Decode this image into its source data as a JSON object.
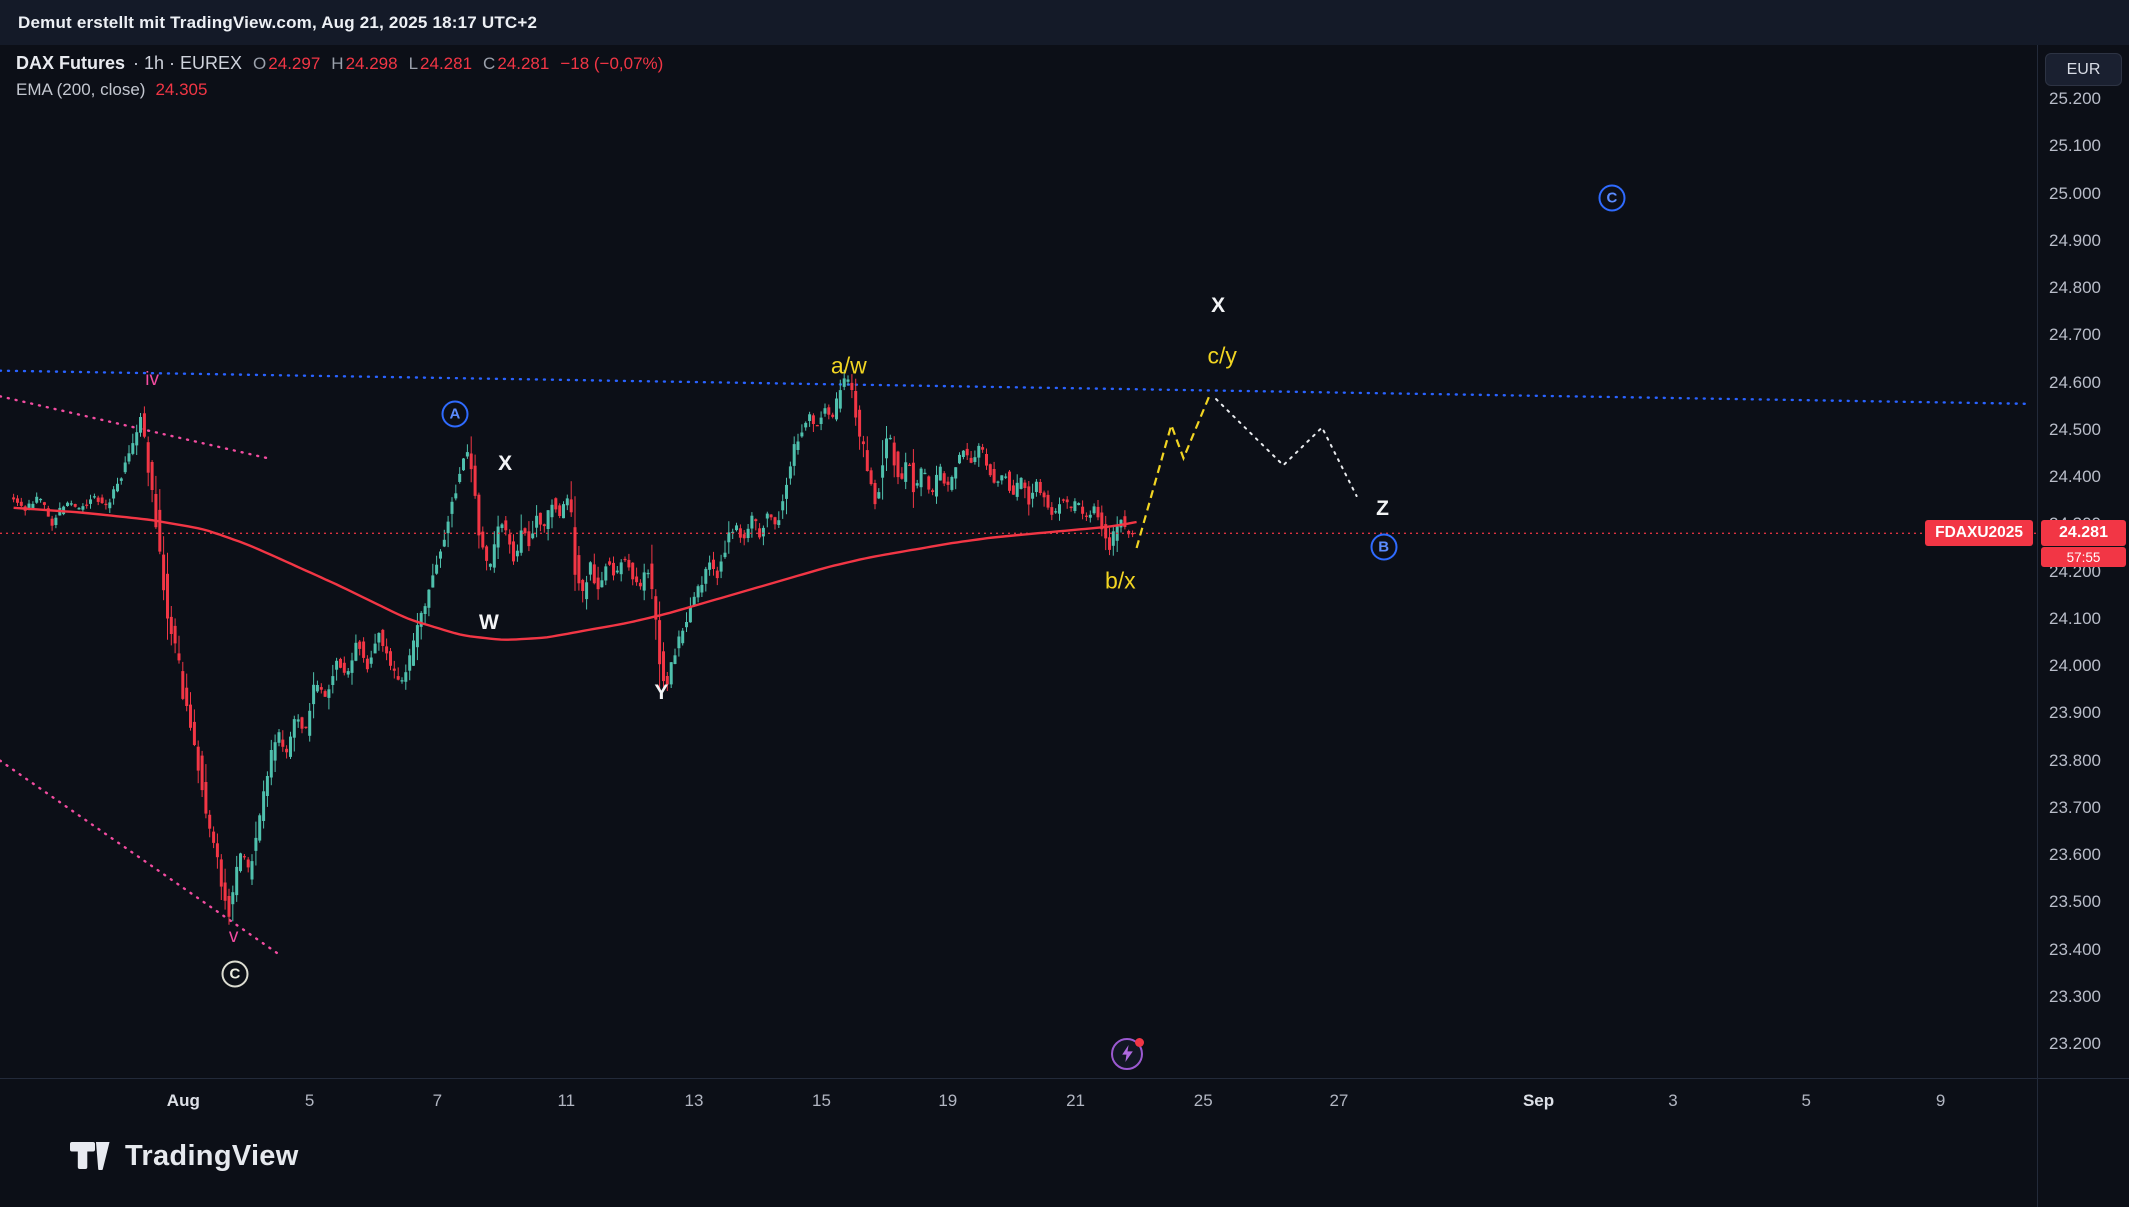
{
  "topbar": {
    "attribution": "Demut erstellt mit TradingView.com, Aug 21, 2025 18:17 UTC+2"
  },
  "legend": {
    "symbol": "DAX Futures",
    "meta": "· 1h · EUREX",
    "ohlc": [
      {
        "k": "O",
        "v": "24.297"
      },
      {
        "k": "H",
        "v": "24.298"
      },
      {
        "k": "L",
        "v": "24.281"
      },
      {
        "k": "C",
        "v": "24.281"
      }
    ],
    "change": "−18 (−0,07%)",
    "ema_label": "EMA (200, close)",
    "ema_value": "24.305"
  },
  "axis": {
    "currency": "EUR",
    "price_tag": {
      "ticker": "FDAXU2025",
      "price": "24.281",
      "countdown": "57:55"
    }
  },
  "logo": {
    "text": "TradingView"
  },
  "colors": {
    "bg": "#0c0f17",
    "candle_up": "#4fc0ad",
    "candle_down": "#f23645",
    "ema": "#f23645",
    "blue": "#2962ff",
    "pink": "#f24ca0",
    "yellow": "#f2d522",
    "white_proj": "#e9ebee",
    "tag_bg": "#f23645"
  },
  "chart_data": {
    "type": "candlestick",
    "symbol": "DAX Futures (FDAXU2025)",
    "interval": "1h",
    "exchange": "EUREX",
    "current_price": 24.281,
    "ema": {
      "period": 200,
      "source": "close",
      "value": 24.305
    },
    "ylim": [
      23.2,
      25.2
    ],
    "y_ticks": [
      {
        "label": "25.200",
        "value": 25.2
      },
      {
        "label": "25.100",
        "value": 25.1
      },
      {
        "label": "25.000",
        "value": 25.0
      },
      {
        "label": "24.900",
        "value": 24.9
      },
      {
        "label": "24.800",
        "value": 24.8
      },
      {
        "label": "24.700",
        "value": 24.7
      },
      {
        "label": "24.600",
        "value": 24.6
      },
      {
        "label": "24.500",
        "value": 24.5
      },
      {
        "label": "24.400",
        "value": 24.4
      },
      {
        "label": "24.300",
        "value": 24.3
      },
      {
        "label": "24.200",
        "value": 24.2
      },
      {
        "label": "24.100",
        "value": 24.1
      },
      {
        "label": "24.000",
        "value": 24.0
      },
      {
        "label": "23.900",
        "value": 23.9
      },
      {
        "label": "23.800",
        "value": 23.8
      },
      {
        "label": "23.700",
        "value": 23.7
      },
      {
        "label": "23.600",
        "value": 23.6
      },
      {
        "label": "23.500",
        "value": 23.5
      },
      {
        "label": "23.400",
        "value": 23.4
      },
      {
        "label": "23.300",
        "value": 23.3
      },
      {
        "label": "23.200",
        "value": 23.2
      }
    ],
    "x_ticks": [
      {
        "label": "Aug",
        "t": 0.09,
        "month": true
      },
      {
        "label": "5",
        "t": 0.152
      },
      {
        "label": "7",
        "t": 0.2147
      },
      {
        "label": "11",
        "t": 0.278
      },
      {
        "label": "13",
        "t": 0.3407
      },
      {
        "label": "15",
        "t": 0.4033
      },
      {
        "label": "19",
        "t": 0.4653
      },
      {
        "label": "21",
        "t": 0.528
      },
      {
        "label": "25",
        "t": 0.5907
      },
      {
        "label": "27",
        "t": 0.6573
      },
      {
        "label": "Sep",
        "t": 0.7553,
        "month": true
      },
      {
        "label": "3",
        "t": 0.8213
      },
      {
        "label": "5",
        "t": 0.8867
      },
      {
        "label": "9",
        "t": 0.9527
      }
    ],
    "candles": {
      "count": 292,
      "t_start": 0.0067,
      "t_end": 0.556
    },
    "price_path": [
      [
        0.0067,
        24.36
      ],
      [
        0.0133,
        24.33
      ],
      [
        0.02,
        24.36
      ],
      [
        0.0267,
        24.3
      ],
      [
        0.0333,
        24.35
      ],
      [
        0.04,
        24.33
      ],
      [
        0.0467,
        24.36
      ],
      [
        0.0533,
        24.34
      ],
      [
        0.06,
        24.4
      ],
      [
        0.0667,
        24.48
      ],
      [
        0.07,
        24.52
      ],
      [
        0.0747,
        24.4
      ],
      [
        0.0787,
        24.28
      ],
      [
        0.0827,
        24.12
      ],
      [
        0.0867,
        24.05
      ],
      [
        0.0907,
        23.95
      ],
      [
        0.0947,
        23.88
      ],
      [
        0.0987,
        23.78
      ],
      [
        0.1027,
        23.67
      ],
      [
        0.1067,
        23.6
      ],
      [
        0.1107,
        23.52
      ],
      [
        0.1133,
        23.48
      ],
      [
        0.1167,
        23.56
      ],
      [
        0.12,
        23.61
      ],
      [
        0.1233,
        23.55
      ],
      [
        0.128,
        23.68
      ],
      [
        0.1333,
        23.8
      ],
      [
        0.1373,
        23.86
      ],
      [
        0.1413,
        23.81
      ],
      [
        0.1467,
        23.9
      ],
      [
        0.1507,
        23.86
      ],
      [
        0.156,
        23.97
      ],
      [
        0.16,
        23.93
      ],
      [
        0.1667,
        24.02
      ],
      [
        0.1707,
        23.97
      ],
      [
        0.176,
        24.06
      ],
      [
        0.1813,
        24.0
      ],
      [
        0.1867,
        24.07
      ],
      [
        0.192,
        24.01
      ],
      [
        0.1973,
        23.96
      ],
      [
        0.2027,
        24.02
      ],
      [
        0.208,
        24.11
      ],
      [
        0.2133,
        24.2
      ],
      [
        0.2187,
        24.27
      ],
      [
        0.2227,
        24.34
      ],
      [
        0.2267,
        24.41
      ],
      [
        0.23,
        24.47
      ],
      [
        0.2333,
        24.37
      ],
      [
        0.2373,
        24.26
      ],
      [
        0.2407,
        24.19
      ],
      [
        0.244,
        24.27
      ],
      [
        0.2473,
        24.31
      ],
      [
        0.2507,
        24.26
      ],
      [
        0.254,
        24.22
      ],
      [
        0.2573,
        24.3
      ],
      [
        0.2607,
        24.26
      ],
      [
        0.264,
        24.32
      ],
      [
        0.268,
        24.29
      ],
      [
        0.272,
        24.35
      ],
      [
        0.276,
        24.32
      ],
      [
        0.28,
        24.37
      ],
      [
        0.2833,
        24.22
      ],
      [
        0.2867,
        24.15
      ],
      [
        0.2907,
        24.21
      ],
      [
        0.2947,
        24.16
      ],
      [
        0.2987,
        24.23
      ],
      [
        0.3027,
        24.19
      ],
      [
        0.3067,
        24.24
      ],
      [
        0.3107,
        24.2
      ],
      [
        0.3147,
        24.16
      ],
      [
        0.3187,
        24.21
      ],
      [
        0.322,
        24.12
      ],
      [
        0.3253,
        24.0
      ],
      [
        0.328,
        23.95
      ],
      [
        0.3313,
        24.02
      ],
      [
        0.3353,
        24.07
      ],
      [
        0.34,
        24.13
      ],
      [
        0.3447,
        24.17
      ],
      [
        0.3493,
        24.22
      ],
      [
        0.3533,
        24.19
      ],
      [
        0.358,
        24.27
      ],
      [
        0.362,
        24.3
      ],
      [
        0.366,
        24.26
      ],
      [
        0.37,
        24.32
      ],
      [
        0.374,
        24.28
      ],
      [
        0.378,
        24.33
      ],
      [
        0.382,
        24.29
      ],
      [
        0.386,
        24.37
      ],
      [
        0.39,
        24.45
      ],
      [
        0.394,
        24.49
      ],
      [
        0.398,
        24.53
      ],
      [
        0.4013,
        24.5
      ],
      [
        0.4053,
        24.55
      ],
      [
        0.4093,
        24.52
      ],
      [
        0.4133,
        24.58
      ],
      [
        0.4167,
        24.62
      ],
      [
        0.42,
        24.55
      ],
      [
        0.424,
        24.47
      ],
      [
        0.428,
        24.39
      ],
      [
        0.4313,
        24.34
      ],
      [
        0.4347,
        24.46
      ],
      [
        0.4373,
        24.5
      ],
      [
        0.44,
        24.44
      ],
      [
        0.4433,
        24.39
      ],
      [
        0.4467,
        24.44
      ],
      [
        0.45,
        24.37
      ],
      [
        0.454,
        24.42
      ],
      [
        0.458,
        24.36
      ],
      [
        0.462,
        24.42
      ],
      [
        0.466,
        24.38
      ],
      [
        0.47,
        24.43
      ],
      [
        0.474,
        24.46
      ],
      [
        0.478,
        24.43
      ],
      [
        0.482,
        24.47
      ],
      [
        0.486,
        24.42
      ],
      [
        0.49,
        24.38
      ],
      [
        0.494,
        24.41
      ],
      [
        0.498,
        24.36
      ],
      [
        0.502,
        24.4
      ],
      [
        0.506,
        24.35
      ],
      [
        0.51,
        24.39
      ],
      [
        0.514,
        24.35
      ],
      [
        0.518,
        24.32
      ],
      [
        0.522,
        24.36
      ],
      [
        0.526,
        24.33
      ],
      [
        0.53,
        24.35
      ],
      [
        0.534,
        24.31
      ],
      [
        0.538,
        24.34
      ],
      [
        0.542,
        24.29
      ],
      [
        0.5453,
        24.24
      ],
      [
        0.548,
        24.28
      ],
      [
        0.5507,
        24.32
      ],
      [
        0.5533,
        24.29
      ],
      [
        0.556,
        24.281
      ]
    ],
    "ema_path": [
      [
        0.0067,
        24.335
      ],
      [
        0.04,
        24.325
      ],
      [
        0.0733,
        24.31
      ],
      [
        0.1,
        24.29
      ],
      [
        0.12,
        24.26
      ],
      [
        0.1333,
        24.235
      ],
      [
        0.1667,
        24.17
      ],
      [
        0.2,
        24.1
      ],
      [
        0.2267,
        24.065
      ],
      [
        0.2467,
        24.055
      ],
      [
        0.268,
        24.06
      ],
      [
        0.2867,
        24.075
      ],
      [
        0.3067,
        24.09
      ],
      [
        0.3267,
        24.11
      ],
      [
        0.3467,
        24.135
      ],
      [
        0.3667,
        24.16
      ],
      [
        0.3867,
        24.185
      ],
      [
        0.4067,
        24.21
      ],
      [
        0.4267,
        24.23
      ],
      [
        0.4467,
        24.245
      ],
      [
        0.4667,
        24.26
      ],
      [
        0.4867,
        24.272
      ],
      [
        0.5067,
        24.28
      ],
      [
        0.5267,
        24.288
      ],
      [
        0.5467,
        24.296
      ],
      [
        0.558,
        24.305
      ]
    ],
    "lines": {
      "blue_dotted": [
        [
          0.0,
          24.625
        ],
        [
          0.995,
          24.555
        ]
      ],
      "pink_upper": [
        [
          0.0,
          24.571
        ],
        [
          0.1333,
          24.438
        ]
      ],
      "pink_lower": [
        [
          0.0,
          23.8
        ],
        [
          0.1387,
          23.385
        ]
      ]
    },
    "projections": {
      "yellow_dashed": [
        [
          0.558,
          24.25
        ],
        [
          0.575,
          24.51
        ],
        [
          0.581,
          24.44
        ],
        [
          0.594,
          24.575
        ]
      ],
      "white_dotted": [
        [
          0.597,
          24.565
        ],
        [
          0.63,
          24.425
        ],
        [
          0.649,
          24.505
        ],
        [
          0.666,
          24.36
        ]
      ]
    },
    "annotations": [
      {
        "text": "iv",
        "t": 0.0747,
        "price": 24.605,
        "style": "pink"
      },
      {
        "text": "A",
        "t": 0.2233,
        "price": 24.533,
        "style": "circle-blue"
      },
      {
        "text": "X",
        "t": 0.248,
        "price": 24.427,
        "style": "white"
      },
      {
        "text": "W",
        "t": 0.24,
        "price": 24.091,
        "style": "white"
      },
      {
        "text": "Y",
        "t": 0.3247,
        "price": 23.944,
        "style": "white"
      },
      {
        "text": "a/w",
        "t": 0.4167,
        "price": 24.634,
        "style": "yellow"
      },
      {
        "text": "X",
        "t": 0.598,
        "price": 24.763,
        "style": "white"
      },
      {
        "text": "c/y",
        "t": 0.6,
        "price": 24.657,
        "style": "yellow"
      },
      {
        "text": "b/x",
        "t": 0.55,
        "price": 24.18,
        "style": "yellow"
      },
      {
        "text": "Z",
        "t": 0.6787,
        "price": 24.332,
        "style": "white"
      },
      {
        "text": "B",
        "t": 0.6793,
        "price": 24.252,
        "style": "circle-blue"
      },
      {
        "text": "C",
        "t": 0.7913,
        "price": 24.99,
        "style": "circle-blue"
      },
      {
        "text": "C",
        "t": 0.1153,
        "price": 23.349,
        "style": "circle-white"
      },
      {
        "text": "v",
        "t": 0.1147,
        "price": 23.427,
        "style": "pink"
      }
    ],
    "event_icon": {
      "t": 0.5533,
      "price": 23.18
    }
  }
}
